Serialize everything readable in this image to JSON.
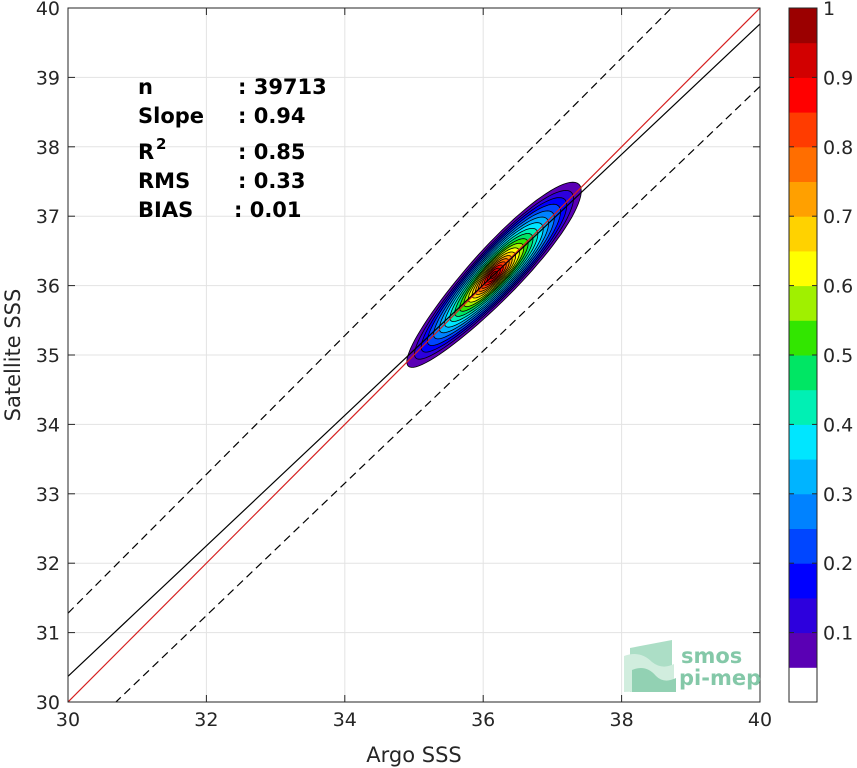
{
  "chart_data": {
    "type": "density-contour-scatter",
    "xlabel": "Argo SSS",
    "ylabel": "Satellite SSS",
    "xlim": [
      30,
      40
    ],
    "ylim": [
      30,
      40
    ],
    "xticks": [
      "30",
      "32",
      "34",
      "36",
      "38",
      "40"
    ],
    "yticks": [
      "30",
      "31",
      "32",
      "33",
      "34",
      "35",
      "36",
      "37",
      "38",
      "39",
      "40"
    ],
    "grid": true,
    "density_peak": {
      "x": 36.15,
      "y": 36.15
    },
    "reference_lines": [
      {
        "kind": "one-to-one",
        "color": "#d62020",
        "style": "solid",
        "x": [
          30,
          40
        ],
        "y": [
          30,
          40
        ]
      },
      {
        "kind": "regression",
        "color": "#000000",
        "style": "solid",
        "x": [
          30,
          40
        ],
        "y": [
          30.37,
          39.77
        ]
      },
      {
        "kind": "upper-bound",
        "color": "#000000",
        "style": "dashed",
        "x": [
          30,
          40
        ],
        "y": [
          31.28,
          41.28
        ]
      },
      {
        "kind": "lower-bound",
        "color": "#000000",
        "style": "dashed",
        "x": [
          30,
          40
        ],
        "y": [
          29.34,
          38.87
        ]
      }
    ],
    "stats": [
      {
        "label": "n",
        "value": ": 39713"
      },
      {
        "label": "Slope",
        "value": ": 0.94"
      },
      {
        "label": "R",
        "sup": "2",
        "value": ": 0.85"
      },
      {
        "label": "RMS",
        "value": ": 0.33"
      },
      {
        "label": "BIAS",
        "value": ": 0.01"
      }
    ],
    "colorbar": {
      "ticks": [
        "0.1",
        "0.2",
        "0.3",
        "0.4",
        "0.5",
        "0.6",
        "0.7",
        "0.8",
        "0.9",
        "1"
      ],
      "tick_values": [
        0.1,
        0.2,
        0.3,
        0.4,
        0.5,
        0.6,
        0.7,
        0.8,
        0.9,
        1.0
      ],
      "range": [
        0,
        1
      ],
      "colors": [
        "#ffffff",
        "#5a00b4",
        "#2d00dd",
        "#0000ff",
        "#0046ff",
        "#0082ff",
        "#00b4ff",
        "#00e6ff",
        "#00f0b4",
        "#00e664",
        "#32e600",
        "#a0f000",
        "#ffff00",
        "#ffd200",
        "#ffa000",
        "#ff6e00",
        "#ff3c00",
        "#ff0000",
        "#d20000",
        "#9b0000"
      ]
    },
    "contour_levels": [
      {
        "level": 0.05,
        "color": "#5a00b4",
        "a": 1.8,
        "b": 0.36
      },
      {
        "level": 0.1,
        "color": "#2d00dd",
        "a": 1.64,
        "b": 0.33
      },
      {
        "level": 0.15,
        "color": "#0000ff",
        "a": 1.5,
        "b": 0.31
      },
      {
        "level": 0.2,
        "color": "#0046ff",
        "a": 1.37,
        "b": 0.29
      },
      {
        "level": 0.25,
        "color": "#0082ff",
        "a": 1.24,
        "b": 0.27
      },
      {
        "level": 0.3,
        "color": "#00b4ff",
        "a": 1.12,
        "b": 0.25
      },
      {
        "level": 0.35,
        "color": "#00e6ff",
        "a": 1.01,
        "b": 0.23
      },
      {
        "level": 0.4,
        "color": "#00f0b4",
        "a": 0.9,
        "b": 0.21
      },
      {
        "level": 0.45,
        "color": "#00e664",
        "a": 0.8,
        "b": 0.19
      },
      {
        "level": 0.5,
        "color": "#32e600",
        "a": 0.7,
        "b": 0.17
      },
      {
        "level": 0.55,
        "color": "#a0f000",
        "a": 0.61,
        "b": 0.155
      },
      {
        "level": 0.6,
        "color": "#ffff00",
        "a": 0.52,
        "b": 0.14
      },
      {
        "level": 0.65,
        "color": "#ffd200",
        "a": 0.44,
        "b": 0.125
      },
      {
        "level": 0.7,
        "color": "#ffa000",
        "a": 0.37,
        "b": 0.11
      },
      {
        "level": 0.75,
        "color": "#ff6e00",
        "a": 0.31,
        "b": 0.095
      },
      {
        "level": 0.8,
        "color": "#ff3c00",
        "a": 0.25,
        "b": 0.08
      },
      {
        "level": 0.85,
        "color": "#ff0000",
        "a": 0.19,
        "b": 0.065
      },
      {
        "level": 0.9,
        "color": "#d20000",
        "a": 0.13,
        "b": 0.05
      },
      {
        "level": 0.95,
        "color": "#9b0000",
        "a": 0.07,
        "b": 0.03
      }
    ]
  },
  "logo": {
    "line1": "smos",
    "line2": "pi-mep"
  }
}
